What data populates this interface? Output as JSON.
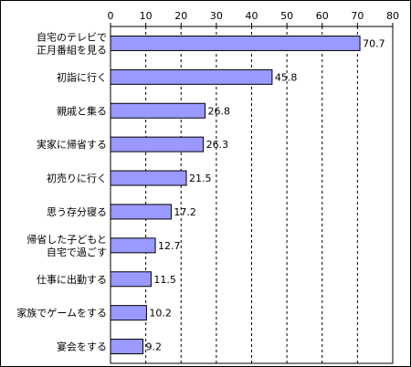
{
  "chart_data": {
    "type": "bar",
    "orientation": "horizontal",
    "categories": [
      [
        "自宅のテレビで",
        "正月番組を見る"
      ],
      [
        "初詣に行く"
      ],
      [
        "親戚と集る"
      ],
      [
        "実家に帰省する"
      ],
      [
        "初売りに行く"
      ],
      [
        "思う存分寝る"
      ],
      [
        "帰省した子どもと",
        "自宅で過ごす"
      ],
      [
        "仕事に出勤する"
      ],
      [
        "家族でゲームをする"
      ],
      [
        "宴会をする"
      ]
    ],
    "values": [
      70.7,
      45.8,
      26.8,
      26.3,
      21.5,
      17.2,
      12.7,
      11.5,
      10.2,
      9.2
    ],
    "value_labels": [
      "70.7",
      "45.8",
      "26.8",
      "26.3",
      "21.5",
      "17.2",
      "12.7",
      "11.5",
      "10.2",
      "9.2"
    ],
    "xlim": [
      0,
      80
    ],
    "x_ticks": [
      "0",
      "10",
      "20",
      "30",
      "40",
      "50",
      "60",
      "70",
      "80"
    ],
    "x_axis_position": "top",
    "grid": "vertical dashed",
    "bar_color": "#9999ff",
    "bar_edge_color": "#000000",
    "legend": "none"
  }
}
